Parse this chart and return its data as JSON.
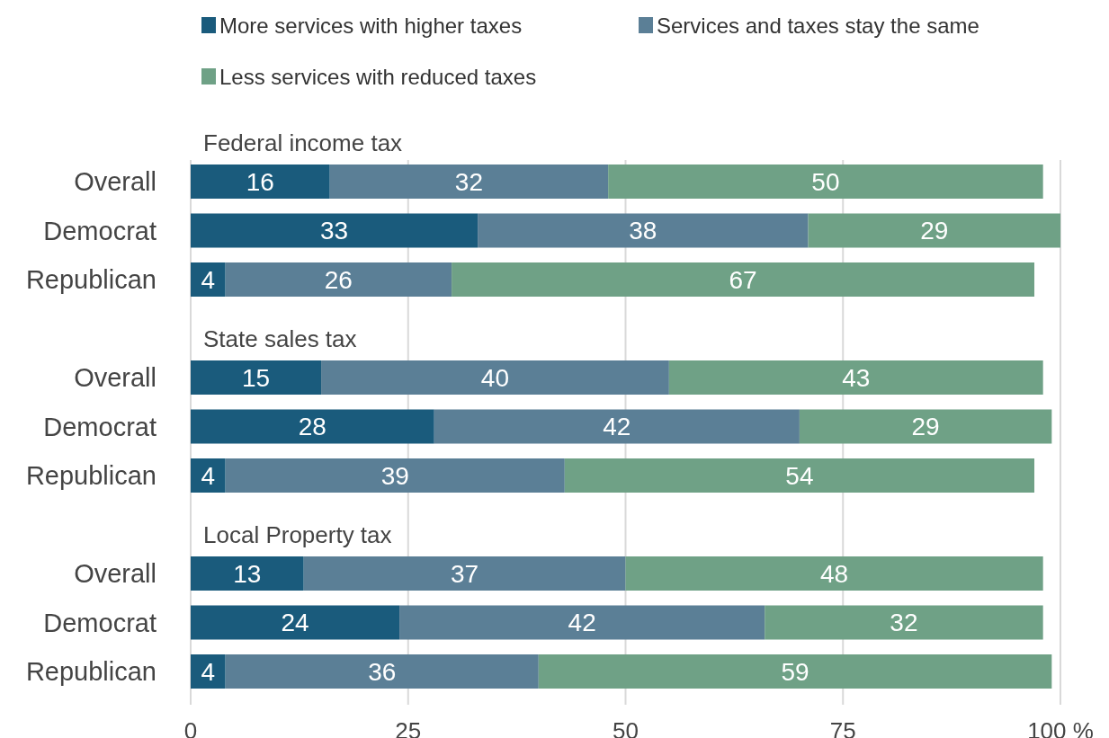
{
  "chart_data": [
    {
      "type": "bar",
      "title": "Federal income tax",
      "orientation": "horizontal",
      "stacked": true,
      "categories": [
        "Overall",
        "Democrat",
        "Republican"
      ],
      "series": [
        {
          "name": "More services with higher taxes",
          "color": "#1a5b7c",
          "values": [
            16,
            33,
            4
          ]
        },
        {
          "name": "Services and taxes stay the same",
          "color": "#5b7f96",
          "values": [
            32,
            38,
            26
          ]
        },
        {
          "name": "Less services with reduced taxes",
          "color": "#6fa186",
          "values": [
            50,
            29,
            67
          ]
        }
      ],
      "xlim": [
        0,
        100
      ],
      "xticks": [
        0,
        25,
        50,
        75,
        100
      ],
      "grid": "x",
      "legend": "top",
      "data_labels": true,
      "tick_labels": "y"
    },
    {
      "type": "bar",
      "title": "State sales tax",
      "orientation": "horizontal",
      "stacked": true,
      "categories": [
        "Overall",
        "Democrat",
        "Republican"
      ],
      "series": [
        {
          "color": "#1a5b7c",
          "values": [
            15,
            28,
            4
          ]
        },
        {
          "color": "#5b7f96",
          "values": [
            40,
            42,
            39
          ]
        },
        {
          "color": "#6fa186",
          "values": [
            43,
            29,
            54
          ]
        }
      ],
      "xlim": [
        0,
        100
      ],
      "xticks": [
        0,
        25,
        50,
        75,
        100
      ],
      "grid": "x",
      "data_labels": true,
      "tick_labels": "y"
    },
    {
      "type": "bar",
      "title": "Local Property tax",
      "orientation": "horizontal",
      "stacked": true,
      "categories": [
        "Overall",
        "Democrat",
        "Republican"
      ],
      "series": [
        {
          "color": "#1a5b7c",
          "values": [
            13,
            24,
            4
          ]
        },
        {
          "color": "#5b7f96",
          "values": [
            37,
            42,
            36
          ]
        },
        {
          "color": "#6fa186",
          "values": [
            48,
            32,
            59
          ]
        }
      ],
      "xlim": [
        0,
        100
      ],
      "xticks": [
        0,
        25,
        50,
        75,
        {
          "value": 100,
          "label": "100 %"
        }
      ],
      "grid": "x",
      "data_labels": true
    }
  ]
}
